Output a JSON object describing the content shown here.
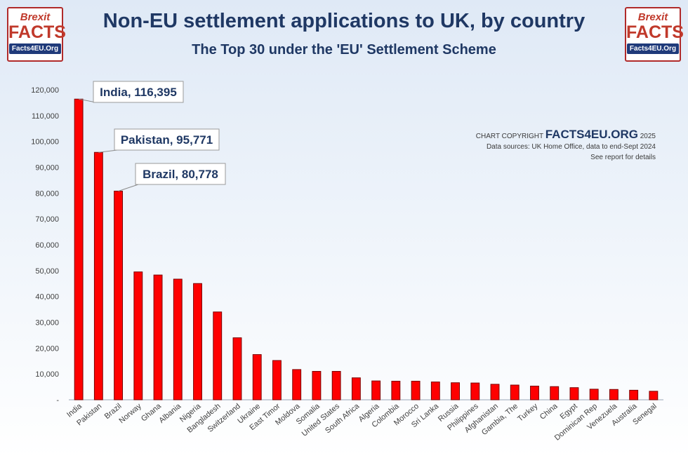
{
  "header": {
    "title": "Non-EU settlement applications to UK, by country",
    "subtitle": "The Top 30 under the 'EU' Settlement Scheme"
  },
  "logo": {
    "line1": "Brexit",
    "line2": "FACTS",
    "line3": "Facts4EU.Org"
  },
  "copyright": {
    "prefix": "CHART COPYRIGHT",
    "brand": "FACTS4EU.ORG",
    "year": "2025",
    "source": "Data sources: UK Home Office, data to end-Sept 2024",
    "note": "See report for details"
  },
  "colors": {
    "bar": "#ff0000",
    "bar_edge": "#7a0000",
    "title": "#1f3864",
    "callout_text": "#1f3864"
  },
  "chart_data": {
    "type": "bar",
    "title": "Non-EU settlement applications to UK, by country",
    "subtitle": "The Top 30 under the 'EU' Settlement Scheme",
    "xlabel": "",
    "ylabel": "",
    "ylim": [
      0,
      120000
    ],
    "grid": false,
    "categories": [
      "India",
      "Pakistan",
      "Brazil",
      "Norway",
      "Ghana",
      "Albania",
      "Nigeria",
      "Bangladesh",
      "Switzerland",
      "Ukraine",
      "East Timor",
      "Moldova",
      "Somalia",
      "United States",
      "South Africa",
      "Algeria",
      "Colombia",
      "Morocco",
      "Sri Lanka",
      "Russia",
      "Philippines",
      "Afghanistan",
      "Gambia, The",
      "Turkey",
      "China",
      "Egypt",
      "Dominican Rep",
      "Venezuela",
      "Australia",
      "Senegal"
    ],
    "values": [
      116395,
      95771,
      80778,
      49500,
      48300,
      46700,
      45000,
      34000,
      24000,
      17500,
      15200,
      11700,
      11000,
      11000,
      8500,
      7300,
      7200,
      7200,
      6900,
      6600,
      6500,
      6000,
      5700,
      5300,
      5100,
      4700,
      4100,
      4000,
      3700,
      3300
    ],
    "y_ticks": [
      0,
      10000,
      20000,
      30000,
      40000,
      50000,
      60000,
      70000,
      80000,
      90000,
      100000,
      110000,
      120000
    ],
    "y_tick_labels": [
      "-",
      "10,000",
      "20,000",
      "30,000",
      "40,000",
      "50,000",
      "60,000",
      "70,000",
      "80,000",
      "90,000",
      "100,000",
      "110,000",
      "120,000"
    ],
    "annotations": [
      {
        "category": "India",
        "text": "India, 116,395"
      },
      {
        "category": "Pakistan",
        "text": "Pakistan, 95,771"
      },
      {
        "category": "Brazil",
        "text": "Brazil, 80,778"
      }
    ]
  }
}
